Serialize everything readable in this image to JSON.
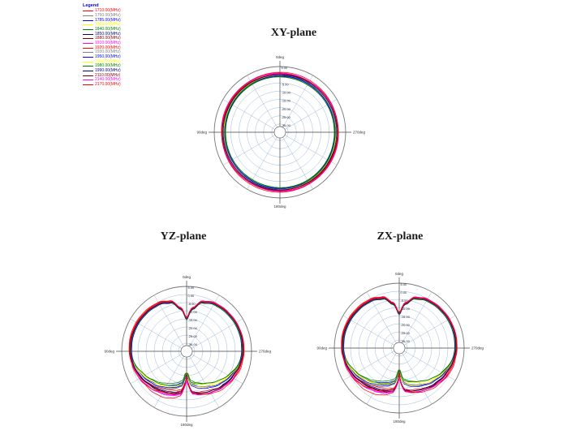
{
  "page": {
    "background": "#ffffff"
  },
  "titles": {
    "xy": "XY-plane",
    "yz": "YZ-plane",
    "zx": "ZX-plane"
  },
  "legend": {
    "title": "Legend",
    "title_color": "#0000cc",
    "items": [
      {
        "label": "1710.00(MHz)",
        "color": "#ff0000"
      },
      {
        "label": "1750.00(MHz)",
        "color": "#808080"
      },
      {
        "label": "1785.00(MHz)",
        "color": "#0000ff"
      },
      {
        "label": "1805.00(MHz)",
        "color": "#ffff00"
      },
      {
        "label": "1840.00(MHz)",
        "color": "#008000"
      },
      {
        "label": "1850.00(MHz)",
        "color": "#000080"
      },
      {
        "label": "1880.00(MHz)",
        "color": "#800000"
      },
      {
        "label": "1910.00(MHz)",
        "color": "#ff00ff"
      },
      {
        "label": "1920.00(MHz)",
        "color": "#ff0000"
      },
      {
        "label": "1930.00(MHz)",
        "color": "#808080"
      },
      {
        "label": "1950.00(MHz)",
        "color": "#0000ff"
      },
      {
        "label": "1960.00(MHz)",
        "color": "#ffff00"
      },
      {
        "label": "1980.00(MHz)",
        "color": "#008000"
      },
      {
        "label": "1990.00(MHz)",
        "color": "#000080"
      },
      {
        "label": "2110.00(MHz)",
        "color": "#800000"
      },
      {
        "label": "2140.00(MHz)",
        "color": "#ff00ff"
      },
      {
        "label": "2170.00(MHz)",
        "color": "#ff0000"
      }
    ]
  },
  "grid_colors": {
    "rings": "#8fb0d0",
    "outer": "#777777",
    "axes": "#444444",
    "tick_text": "#222244",
    "angle_text": "#333333"
  },
  "chart_data": [
    {
      "id": "xy",
      "type": "polar-line",
      "title": "XY-plane",
      "angle_labels": {
        "top": "0deg",
        "left": "90deg",
        "right": "270deg",
        "bottom": "180deg"
      },
      "radial_ticks_db": [
        5,
        0,
        -5,
        -10,
        -15,
        -20,
        -25,
        -30
      ],
      "r_axis": {
        "max_db": 5,
        "center_db": -35,
        "step_db": 5
      },
      "clip_min_db": -30,
      "back_scale": 0,
      "wobble_scale": 0.9,
      "base_pattern": {
        "angles": [
          0,
          180
        ],
        "db": [
          0,
          0
        ]
      },
      "series": [
        {
          "label": "1710.00(MHz)",
          "color": "#ff0000",
          "params": [
            0.6,
            0,
            0.5,
            0.0
          ]
        },
        {
          "label": "1750.00(MHz)",
          "color": "#808080",
          "params": [
            -0.9,
            0,
            0.4,
            1.0
          ]
        },
        {
          "label": "1785.00(MHz)",
          "color": "#0000ff",
          "params": [
            -1.3,
            0,
            0.5,
            2.0
          ]
        },
        {
          "label": "1805.00(MHz)",
          "color": "#ffff00",
          "params": [
            -0.7,
            0,
            0.4,
            2.6
          ]
        },
        {
          "label": "1840.00(MHz)",
          "color": "#008000",
          "params": [
            -1.6,
            0,
            0.4,
            1.5
          ]
        },
        {
          "label": "1850.00(MHz)",
          "color": "#000080",
          "params": [
            -0.4,
            0,
            0.3,
            2.5
          ]
        },
        {
          "label": "1880.00(MHz)",
          "color": "#800000",
          "params": [
            0.1,
            0,
            0.3,
            0.3
          ]
        },
        {
          "label": "1910.00(MHz)",
          "color": "#ff00ff",
          "params": [
            0.5,
            0,
            0.4,
            1.2
          ]
        },
        {
          "label": "1920.00(MHz)",
          "color": "#ff0000",
          "params": [
            0.3,
            0,
            0.5,
            2.8
          ]
        },
        {
          "label": "1930.00(MHz)",
          "color": "#808080",
          "params": [
            -0.6,
            0,
            0.4,
            0.8
          ]
        },
        {
          "label": "1950.00(MHz)",
          "color": "#0000ff",
          "params": [
            -1.1,
            0,
            0.5,
            1.8
          ]
        },
        {
          "label": "1960.00(MHz)",
          "color": "#ffff00",
          "params": [
            -0.3,
            0,
            0.4,
            2.2
          ]
        },
        {
          "label": "1980.00(MHz)",
          "color": "#008000",
          "params": [
            -1.4,
            0,
            0.4,
            0.2
          ]
        },
        {
          "label": "1990.00(MHz)",
          "color": "#000080",
          "params": [
            -0.2,
            0,
            0.3,
            1.6
          ]
        },
        {
          "label": "2110.00(MHz)",
          "color": "#800000",
          "params": [
            0.2,
            0,
            0.3,
            2.6
          ]
        },
        {
          "label": "2140.00(MHz)",
          "color": "#ff00ff",
          "params": [
            0.8,
            0,
            0.4,
            0.9
          ]
        },
        {
          "label": "2170.00(MHz)",
          "color": "#ff0000",
          "params": [
            1.0,
            0,
            0.6,
            1.9
          ]
        }
      ]
    },
    {
      "id": "yz",
      "type": "polar-line",
      "title": "YZ-plane",
      "angle_labels": {
        "top": "0deg",
        "left": "90deg",
        "right": "270deg",
        "bottom": "180deg"
      },
      "radial_ticks_db": [
        5,
        0,
        -5,
        -10,
        -15,
        -20,
        -25,
        -30
      ],
      "r_axis": {
        "max_db": 5,
        "center_db": -35,
        "step_db": 5
      },
      "clip_min_db": -21.5,
      "back_scale": 1,
      "wobble_scale": 0.1,
      "base_pattern": {
        "angles": [
          0,
          8,
          18,
          30,
          45,
          60,
          75,
          90,
          105,
          120,
          135,
          150,
          162,
          172,
          177,
          180
        ],
        "db": [
          -15,
          -8.5,
          -3.2,
          -1.2,
          -0.5,
          -0.1,
          0,
          -0.3,
          -1.0,
          -2.2,
          -3.6,
          -5.0,
          -6.0,
          -7.5,
          -12,
          -19
        ]
      },
      "series": [
        {
          "label": "1710.00(MHz)",
          "color": "#ff0000",
          "params": [
            0.8,
            -1.2,
            3.0,
            0.2
          ]
        },
        {
          "label": "1750.00(MHz)",
          "color": "#808080",
          "params": [
            -0.3,
            -5.0,
            1.6,
            1.0
          ]
        },
        {
          "label": "1785.00(MHz)",
          "color": "#0000ff",
          "params": [
            -0.5,
            -5.8,
            2.0,
            2.0
          ]
        },
        {
          "label": "1805.00(MHz)",
          "color": "#ffff00",
          "params": [
            -0.4,
            -6.5,
            1.2,
            0.5
          ]
        },
        {
          "label": "1840.00(MHz)",
          "color": "#008000",
          "params": [
            -0.6,
            -8.0,
            1.0,
            1.5
          ]
        },
        {
          "label": "1850.00(MHz)",
          "color": "#000080",
          "params": [
            -0.2,
            -2.0,
            0.6,
            2.5
          ]
        },
        {
          "label": "1880.00(MHz)",
          "color": "#800000",
          "params": [
            0.0,
            -1.5,
            0.5,
            0.3
          ]
        },
        {
          "label": "1910.00(MHz)",
          "color": "#ff00ff",
          "params": [
            0.4,
            -1.0,
            0.8,
            1.2
          ]
        },
        {
          "label": "1920.00(MHz)",
          "color": "#ff0000",
          "params": [
            0.2,
            -2.6,
            1.8,
            2.8
          ]
        },
        {
          "label": "1930.00(MHz)",
          "color": "#808080",
          "params": [
            -0.1,
            -5.2,
            1.4,
            0.8
          ]
        },
        {
          "label": "1950.00(MHz)",
          "color": "#0000ff",
          "params": [
            -0.7,
            -4.2,
            1.6,
            1.8
          ]
        },
        {
          "label": "1960.00(MHz)",
          "color": "#ffff00",
          "params": [
            -0.3,
            -6.0,
            1.1,
            2.2
          ]
        },
        {
          "label": "1980.00(MHz)",
          "color": "#008000",
          "params": [
            -0.5,
            -7.2,
            0.9,
            0.2
          ]
        },
        {
          "label": "1990.00(MHz)",
          "color": "#000080",
          "params": [
            -0.1,
            -1.8,
            0.5,
            1.6
          ]
        },
        {
          "label": "2110.00(MHz)",
          "color": "#800000",
          "params": [
            0.1,
            -1.3,
            0.6,
            2.6
          ]
        },
        {
          "label": "2140.00(MHz)",
          "color": "#ff00ff",
          "params": [
            0.5,
            -0.8,
            0.7,
            0.9
          ]
        },
        {
          "label": "2170.00(MHz)",
          "color": "#ff0000",
          "params": [
            0.7,
            -1.5,
            2.2,
            1.9
          ]
        }
      ]
    },
    {
      "id": "zx",
      "type": "polar-line",
      "title": "ZX-plane",
      "angle_labels": {
        "top": "0deg",
        "left": "90deg",
        "right": "270deg",
        "bottom": "180deg"
      },
      "radial_ticks_db": [
        5,
        0,
        -5,
        -10,
        -15,
        -20,
        -25,
        -30
      ],
      "r_axis": {
        "max_db": 5,
        "center_db": -35,
        "step_db": 5
      },
      "clip_min_db": -21.5,
      "back_scale": 1,
      "wobble_scale": 0.1,
      "base_pattern": {
        "angles": [
          0,
          8,
          18,
          30,
          45,
          60,
          75,
          90,
          105,
          120,
          135,
          150,
          162,
          172,
          177,
          180
        ],
        "db": [
          -14,
          -7.5,
          -2.8,
          -1.0,
          -0.3,
          0.1,
          0.2,
          -0.1,
          -0.8,
          -1.8,
          -3.2,
          -4.6,
          -5.6,
          -7.0,
          -11,
          -19
        ]
      },
      "series": [
        {
          "label": "1710.00(MHz)",
          "color": "#ff0000",
          "params": [
            0.9,
            -1.0,
            2.8,
            0.5
          ]
        },
        {
          "label": "1750.00(MHz)",
          "color": "#808080",
          "params": [
            -0.2,
            -4.6,
            1.7,
            1.2
          ]
        },
        {
          "label": "1785.00(MHz)",
          "color": "#0000ff",
          "params": [
            -0.4,
            -5.5,
            1.9,
            2.3
          ]
        },
        {
          "label": "1805.00(MHz)",
          "color": "#ffff00",
          "params": [
            -0.3,
            -6.2,
            1.2,
            0.7
          ]
        },
        {
          "label": "1840.00(MHz)",
          "color": "#008000",
          "params": [
            -0.5,
            -7.6,
            1.0,
            1.7
          ]
        },
        {
          "label": "1850.00(MHz)",
          "color": "#000080",
          "params": [
            -0.1,
            -1.8,
            0.6,
            2.7
          ]
        },
        {
          "label": "1880.00(MHz)",
          "color": "#800000",
          "params": [
            0.1,
            -1.4,
            0.5,
            0.5
          ]
        },
        {
          "label": "1910.00(MHz)",
          "color": "#ff00ff",
          "params": [
            0.5,
            -0.9,
            0.8,
            1.4
          ]
        },
        {
          "label": "1920.00(MHz)",
          "color": "#ff0000",
          "params": [
            0.3,
            -2.4,
            1.7,
            3.0
          ]
        },
        {
          "label": "1930.00(MHz)",
          "color": "#808080",
          "params": [
            0.0,
            -4.8,
            1.5,
            1.0
          ]
        },
        {
          "label": "1950.00(MHz)",
          "color": "#0000ff",
          "params": [
            -0.6,
            -4.0,
            1.6,
            2.0
          ]
        },
        {
          "label": "1960.00(MHz)",
          "color": "#ffff00",
          "params": [
            -0.2,
            -5.6,
            1.1,
            2.4
          ]
        },
        {
          "label": "1980.00(MHz)",
          "color": "#008000",
          "params": [
            -0.4,
            -6.8,
            0.9,
            0.4
          ]
        },
        {
          "label": "1990.00(MHz)",
          "color": "#000080",
          "params": [
            0.0,
            -1.6,
            0.5,
            1.8
          ]
        },
        {
          "label": "2110.00(MHz)",
          "color": "#800000",
          "params": [
            0.2,
            -1.1,
            0.6,
            2.8
          ]
        },
        {
          "label": "2140.00(MHz)",
          "color": "#ff00ff",
          "params": [
            0.6,
            -0.7,
            0.7,
            1.1
          ]
        },
        {
          "label": "2170.00(MHz)",
          "color": "#ff0000",
          "params": [
            0.8,
            -1.3,
            2.0,
            2.1
          ]
        }
      ]
    }
  ]
}
